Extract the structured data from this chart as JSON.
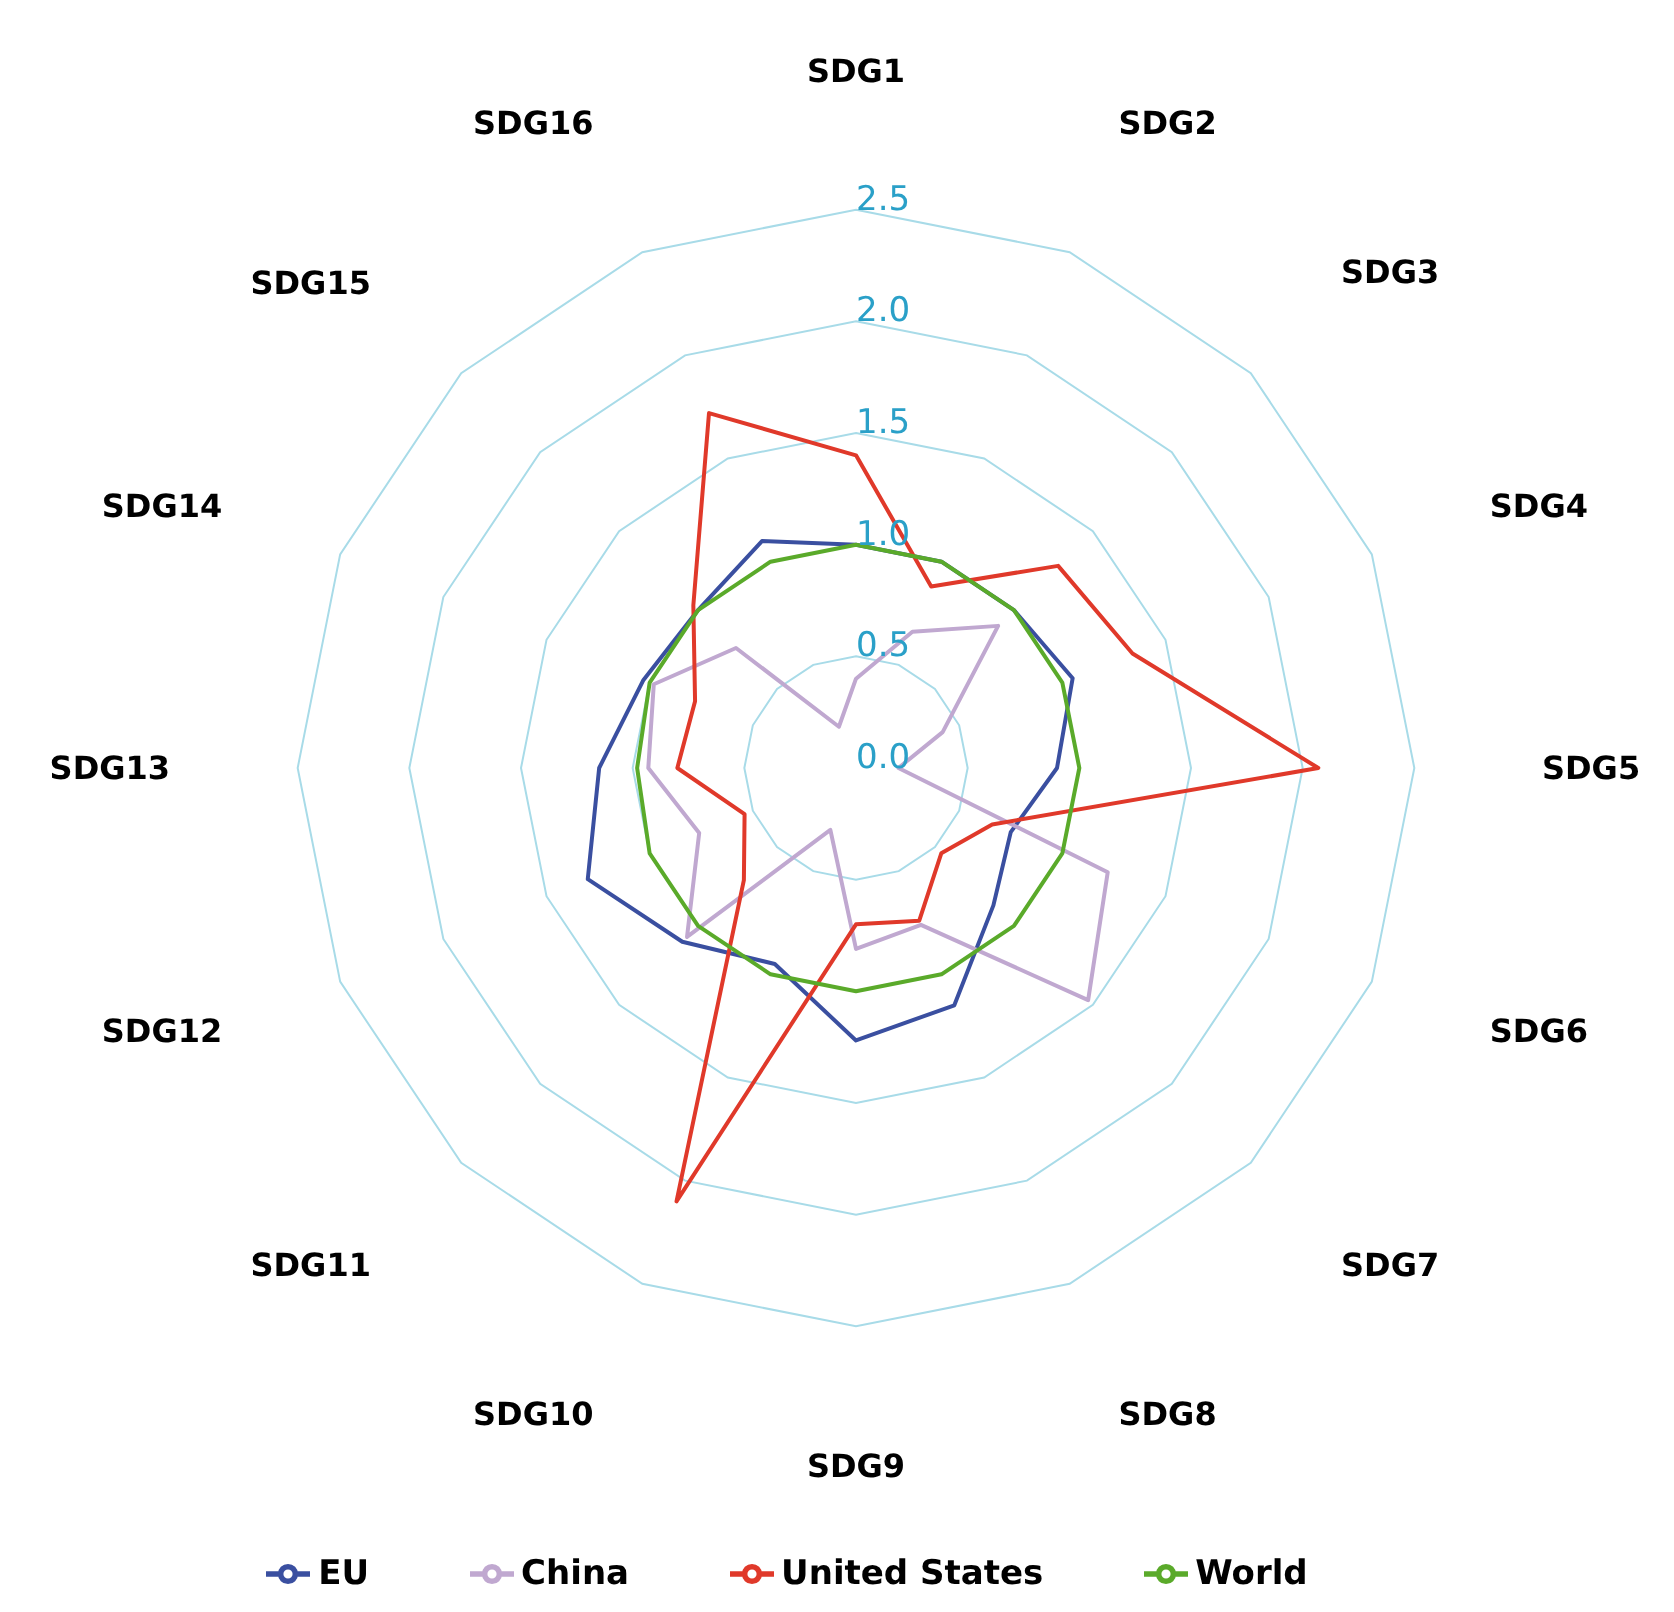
{
  "chart_data": {
    "type": "radar",
    "categories": [
      "SDG1",
      "SDG2",
      "SDG3",
      "SDG4",
      "SDG5",
      "SDG6",
      "SDG7",
      "SDG8",
      "SDG9",
      "SDG10",
      "SDG11",
      "SDG12",
      "SDG13",
      "SDG14",
      "SDG15",
      "SDG16"
    ],
    "ylim": [
      0,
      2.5
    ],
    "yticks": [
      {
        "value": 0,
        "label": "0.0"
      },
      0.5,
      {
        "value": 1,
        "label": "1.0"
      },
      1.5,
      {
        "value": 2,
        "label": "2.0"
      },
      2.5
    ],
    "grid": true,
    "legend": "bottom",
    "marker": "none",
    "series": [
      {
        "name": "EU",
        "color": "#3a4fa0",
        "values": [
          1.0,
          1.0,
          1.0,
          1.05,
          0.9,
          0.75,
          0.87,
          1.15,
          1.22,
          0.95,
          1.1,
          1.3,
          1.15,
          1.03,
          1.0,
          1.1
        ]
      },
      {
        "name": "China",
        "color": "#c0a8d0",
        "values": [
          0.4,
          0.66,
          0.9,
          0.42,
          0.19,
          1.22,
          1.47,
          0.76,
          0.81,
          0.3,
          1.07,
          0.76,
          0.93,
          0.98,
          0.76,
          0.2
        ]
      },
      {
        "name": "United States",
        "color": "#e0392a",
        "values": [
          1.4,
          0.88,
          1.28,
          1.34,
          2.07,
          0.66,
          0.54,
          0.74,
          0.7,
          2.1,
          0.71,
          0.54,
          0.8,
          0.78,
          1.03,
          1.72
        ]
      },
      {
        "name": "World",
        "color": "#5aaa2a",
        "values": [
          1.0,
          1.0,
          1.0,
          1.0,
          1.0,
          1.0,
          1.0,
          1.0,
          1.0,
          1.0,
          1.0,
          1.0,
          0.98,
          1.0,
          1.0,
          1.0
        ]
      }
    ]
  }
}
